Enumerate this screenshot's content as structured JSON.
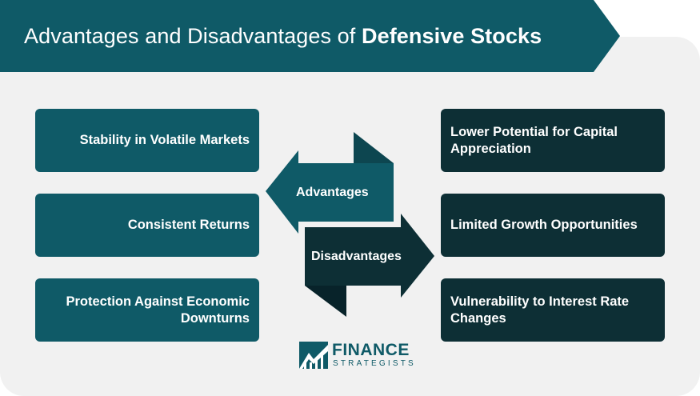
{
  "header": {
    "title_regular": "Advantages and Disadvantages of ",
    "title_bold": "Defensive Stocks"
  },
  "advantages": {
    "label": "Advantages",
    "items": [
      "Stability in Volatile Markets",
      "Consistent Returns",
      "Protection Against Economic Downturns"
    ]
  },
  "disadvantages": {
    "label": "Disadvantages",
    "items": [
      "Lower Potential for Capital Appreciation",
      "Limited Growth Opportunities",
      "Vulnerability to Interest Rate Changes"
    ]
  },
  "logo": {
    "word1": "FINANCE",
    "word2": "STRATEGISTS"
  },
  "colors": {
    "banner": "#0f5a67",
    "advantage_box": "#0f5a67",
    "disadvantage_box": "#0d2f35",
    "panel": "#f1f1f1"
  }
}
